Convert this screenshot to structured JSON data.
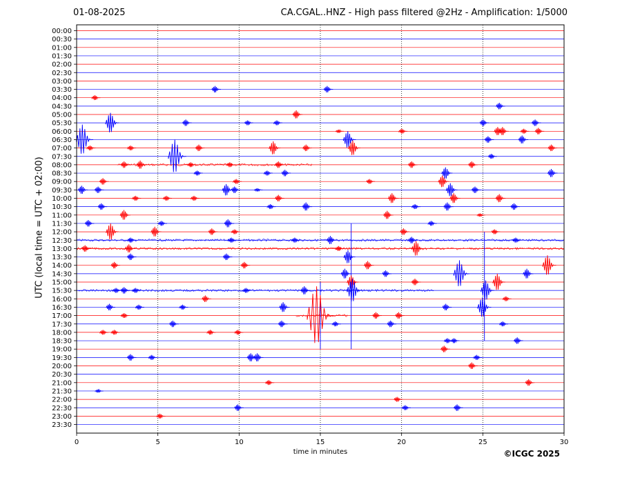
{
  "header": {
    "date": "01-08-2025",
    "title": "CA.CGAL..HNZ - High pass filtered @2Hz - Amplification: 1/5000"
  },
  "credit": "©ICGC 2025",
  "colors": {
    "trace_a": "#ff0000",
    "trace_b": "#0000ff",
    "grid": "#000000"
  },
  "chart_data": {
    "type": "line",
    "title": "CA.CGAL..HNZ - High pass filtered @2Hz - Amplification: 1/5000",
    "xlabel": "time in minutes",
    "ylabel": "UTC (local time = UTC + 02:00)",
    "xlim": [
      0,
      30
    ],
    "x_ticks": [
      "0",
      "5",
      "10",
      "15",
      "20",
      "25",
      "30"
    ],
    "x_tick_values": [
      0,
      5,
      10,
      15,
      20,
      25,
      30
    ],
    "vertical_grid_minutes": [
      5,
      10,
      15,
      20,
      25
    ],
    "y_tick_labels": [
      "00:00",
      "00:30",
      "01:00",
      "01:30",
      "02:00",
      "02:30",
      "03:00",
      "03:30",
      "04:00",
      "04:30",
      "05:00",
      "05:30",
      "06:00",
      "06:30",
      "07:00",
      "07:30",
      "08:00",
      "08:30",
      "09:00",
      "09:30",
      "10:00",
      "10:30",
      "11:00",
      "11:30",
      "12:00",
      "12:30",
      "13:00",
      "13:30",
      "14:00",
      "14:30",
      "15:00",
      "15:30",
      "16:00",
      "16:30",
      "17:00",
      "17:30",
      "18:00",
      "18:30",
      "19:00",
      "19:30",
      "20:00",
      "20:30",
      "21:00",
      "21:30",
      "22:00",
      "22:30",
      "23:00",
      "23:30"
    ],
    "trace_color_order": [
      "red",
      "blue"
    ],
    "events": [
      {
        "row": "03:30",
        "minute": 8.6,
        "amp": 0.4
      },
      {
        "row": "03:30",
        "minute": 15.5,
        "amp": 0.4
      },
      {
        "row": "04:00",
        "minute": 1.2,
        "amp": 0.3
      },
      {
        "row": "04:30",
        "minute": 26.1,
        "amp": 0.4
      },
      {
        "row": "05:00",
        "minute": 13.6,
        "amp": 0.5
      },
      {
        "row": "05:30",
        "minute": 2.2,
        "amp": 1.2
      },
      {
        "row": "05:30",
        "minute": 6.8,
        "amp": 0.4
      },
      {
        "row": "05:30",
        "minute": 10.6,
        "amp": 0.3
      },
      {
        "row": "05:30",
        "minute": 12.4,
        "amp": 0.3
      },
      {
        "row": "05:30",
        "minute": 25.1,
        "amp": 0.4
      },
      {
        "row": "05:30",
        "minute": 28.3,
        "amp": 0.4
      },
      {
        "row": "06:00",
        "minute": 16.2,
        "amp": 0.2
      },
      {
        "row": "06:00",
        "minute": 20.1,
        "amp": 0.3
      },
      {
        "row": "06:00",
        "minute": 26.0,
        "amp": 0.5
      },
      {
        "row": "06:00",
        "minute": 26.3,
        "amp": 0.5
      },
      {
        "row": "06:00",
        "minute": 27.6,
        "amp": 0.3
      },
      {
        "row": "06:00",
        "minute": 28.5,
        "amp": 0.4
      },
      {
        "row": "06:30",
        "minute": 0.5,
        "amp": 1.8
      },
      {
        "row": "06:30",
        "minute": 16.8,
        "amp": 1.0
      },
      {
        "row": "06:30",
        "minute": 25.4,
        "amp": 0.4
      },
      {
        "row": "06:30",
        "minute": 27.5,
        "amp": 0.5
      },
      {
        "row": "07:00",
        "minute": 0.9,
        "amp": 0.3
      },
      {
        "row": "07:00",
        "minute": 3.4,
        "amp": 0.3
      },
      {
        "row": "07:00",
        "minute": 7.6,
        "amp": 0.4
      },
      {
        "row": "07:00",
        "minute": 12.2,
        "amp": 0.8
      },
      {
        "row": "07:00",
        "minute": 14.2,
        "amp": 0.4
      },
      {
        "row": "07:00",
        "minute": 17.1,
        "amp": 0.9
      },
      {
        "row": "07:00",
        "minute": 29.3,
        "amp": 0.4
      },
      {
        "row": "07:30",
        "minute": 6.2,
        "amp": 2.0
      },
      {
        "row": "07:30",
        "minute": 25.6,
        "amp": 0.3
      },
      {
        "row": "08:00",
        "minute": 3.0,
        "amp": 0.4
      },
      {
        "row": "08:00",
        "minute": 4.0,
        "amp": 0.5
      },
      {
        "row": "08:00",
        "minute": 7.1,
        "amp": 0.3
      },
      {
        "row": "08:00",
        "minute": 9.5,
        "amp": 0.3
      },
      {
        "row": "08:00",
        "minute": 12.5,
        "amp": 0.4
      },
      {
        "row": "08:00",
        "minute": 20.7,
        "amp": 0.4
      },
      {
        "row": "08:00",
        "minute": 24.4,
        "amp": 0.4
      },
      {
        "row": "08:30",
        "minute": 7.5,
        "amp": 0.3
      },
      {
        "row": "08:30",
        "minute": 11.8,
        "amp": 0.3
      },
      {
        "row": "08:30",
        "minute": 12.9,
        "amp": 0.4
      },
      {
        "row": "08:30",
        "minute": 22.8,
        "amp": 0.7
      },
      {
        "row": "08:30",
        "minute": 29.3,
        "amp": 0.5
      },
      {
        "row": "09:00",
        "minute": 1.7,
        "amp": 0.4
      },
      {
        "row": "09:00",
        "minute": 9.9,
        "amp": 0.3
      },
      {
        "row": "09:00",
        "minute": 18.1,
        "amp": 0.3
      },
      {
        "row": "09:00",
        "minute": 22.6,
        "amp": 0.7
      },
      {
        "row": "09:30",
        "minute": 0.4,
        "amp": 0.5
      },
      {
        "row": "09:30",
        "minute": 1.4,
        "amp": 0.4
      },
      {
        "row": "09:30",
        "minute": 9.3,
        "amp": 0.7
      },
      {
        "row": "09:30",
        "minute": 9.8,
        "amp": 0.4
      },
      {
        "row": "09:30",
        "minute": 11.2,
        "amp": 0.2
      },
      {
        "row": "09:30",
        "minute": 23.1,
        "amp": 0.8
      },
      {
        "row": "09:30",
        "minute": 24.6,
        "amp": 0.4
      },
      {
        "row": "10:00",
        "minute": 3.7,
        "amp": 0.3
      },
      {
        "row": "10:00",
        "minute": 5.6,
        "amp": 0.3
      },
      {
        "row": "10:00",
        "minute": 7.3,
        "amp": 0.3
      },
      {
        "row": "10:00",
        "minute": 12.5,
        "amp": 0.4
      },
      {
        "row": "10:00",
        "minute": 19.5,
        "amp": 0.6
      },
      {
        "row": "10:00",
        "minute": 23.3,
        "amp": 0.6
      },
      {
        "row": "10:00",
        "minute": 26.1,
        "amp": 0.5
      },
      {
        "row": "10:30",
        "minute": 1.6,
        "amp": 0.4
      },
      {
        "row": "10:30",
        "minute": 12.0,
        "amp": 0.3
      },
      {
        "row": "10:30",
        "minute": 14.2,
        "amp": 0.5
      },
      {
        "row": "10:30",
        "minute": 20.9,
        "amp": 0.3
      },
      {
        "row": "10:30",
        "minute": 22.9,
        "amp": 0.5
      },
      {
        "row": "10:30",
        "minute": 27.0,
        "amp": 0.4
      },
      {
        "row": "11:00",
        "minute": 3.0,
        "amp": 0.6
      },
      {
        "row": "11:00",
        "minute": 19.2,
        "amp": 0.5
      },
      {
        "row": "11:00",
        "minute": 24.9,
        "amp": 0.2
      },
      {
        "row": "11:30",
        "minute": 0.8,
        "amp": 0.4
      },
      {
        "row": "11:30",
        "minute": 5.3,
        "amp": 0.3
      },
      {
        "row": "11:30",
        "minute": 9.4,
        "amp": 0.5
      },
      {
        "row": "11:30",
        "minute": 21.9,
        "amp": 0.3
      },
      {
        "row": "12:00",
        "minute": 2.2,
        "amp": 1.0
      },
      {
        "row": "12:00",
        "minute": 4.9,
        "amp": 0.6
      },
      {
        "row": "12:00",
        "minute": 8.4,
        "amp": 0.4
      },
      {
        "row": "12:00",
        "minute": 9.8,
        "amp": 0.3
      },
      {
        "row": "12:00",
        "minute": 20.2,
        "amp": 0.4
      },
      {
        "row": "12:00",
        "minute": 25.8,
        "amp": 0.3
      },
      {
        "row": "12:30",
        "minute": 3.4,
        "amp": 0.3
      },
      {
        "row": "12:30",
        "minute": 9.6,
        "amp": 0.3
      },
      {
        "row": "12:30",
        "minute": 13.5,
        "amp": 0.3
      },
      {
        "row": "12:30",
        "minute": 15.7,
        "amp": 0.5
      },
      {
        "row": "12:30",
        "minute": 20.7,
        "amp": 0.4
      },
      {
        "row": "12:30",
        "minute": 27.1,
        "amp": 0.3
      },
      {
        "row": "13:00",
        "minute": 0.6,
        "amp": 0.4
      },
      {
        "row": "13:00",
        "minute": 3.3,
        "amp": 0.5
      },
      {
        "row": "13:00",
        "minute": 16.2,
        "amp": 0.3
      },
      {
        "row": "13:00",
        "minute": 21.0,
        "amp": 0.9
      },
      {
        "row": "13:30",
        "minute": 3.4,
        "amp": 0.4
      },
      {
        "row": "13:30",
        "minute": 9.3,
        "amp": 0.4
      },
      {
        "row": "13:30",
        "minute": 16.8,
        "amp": 0.8
      },
      {
        "row": "14:00",
        "minute": 2.4,
        "amp": 0.4
      },
      {
        "row": "14:00",
        "minute": 10.4,
        "amp": 0.4
      },
      {
        "row": "14:00",
        "minute": 18.0,
        "amp": 0.5
      },
      {
        "row": "14:00",
        "minute": 29.1,
        "amp": 1.2
      },
      {
        "row": "14:30",
        "minute": 16.6,
        "amp": 0.6
      },
      {
        "row": "14:30",
        "minute": 19.1,
        "amp": 0.4
      },
      {
        "row": "14:30",
        "minute": 23.7,
        "amp": 1.6
      },
      {
        "row": "14:30",
        "minute": 27.8,
        "amp": 0.6
      },
      {
        "row": "15:00",
        "minute": 17.0,
        "amp": 0.8
      },
      {
        "row": "15:00",
        "minute": 20.9,
        "amp": 0.4
      },
      {
        "row": "15:00",
        "minute": 26.0,
        "amp": 1.0
      },
      {
        "row": "15:30",
        "minute": 2.5,
        "amp": 0.3
      },
      {
        "row": "15:30",
        "minute": 3.0,
        "amp": 0.4
      },
      {
        "row": "15:30",
        "minute": 3.7,
        "amp": 0.3
      },
      {
        "row": "15:30",
        "minute": 10.5,
        "amp": 0.3
      },
      {
        "row": "15:30",
        "minute": 14.1,
        "amp": 0.5
      },
      {
        "row": "15:30",
        "minute": 17.1,
        "amp": 1.4
      },
      {
        "row": "15:30",
        "minute": 25.3,
        "amp": 1.2
      },
      {
        "row": "16:00",
        "minute": 8.0,
        "amp": 0.4
      },
      {
        "row": "16:00",
        "minute": 26.5,
        "amp": 0.3
      },
      {
        "row": "16:30",
        "minute": 2.1,
        "amp": 0.4
      },
      {
        "row": "16:30",
        "minute": 3.9,
        "amp": 0.3
      },
      {
        "row": "16:30",
        "minute": 6.6,
        "amp": 0.3
      },
      {
        "row": "16:30",
        "minute": 12.8,
        "amp": 0.6
      },
      {
        "row": "16:30",
        "minute": 22.8,
        "amp": 0.4
      },
      {
        "row": "16:30",
        "minute": 25.1,
        "amp": 1.2
      },
      {
        "row": "17:00",
        "minute": 3.0,
        "amp": 0.3
      },
      {
        "row": "17:00",
        "minute": 15.0,
        "amp": 3.5
      },
      {
        "row": "17:00",
        "minute": 18.5,
        "amp": 0.4
      },
      {
        "row": "17:00",
        "minute": 19.9,
        "amp": 0.4
      },
      {
        "row": "17:30",
        "minute": 6.0,
        "amp": 0.4
      },
      {
        "row": "17:30",
        "minute": 12.7,
        "amp": 0.4
      },
      {
        "row": "17:30",
        "minute": 16.0,
        "amp": 0.3
      },
      {
        "row": "17:30",
        "minute": 19.4,
        "amp": 0.4
      },
      {
        "row": "17:30",
        "minute": 26.3,
        "amp": 0.3
      },
      {
        "row": "18:00",
        "minute": 1.7,
        "amp": 0.3
      },
      {
        "row": "18:00",
        "minute": 2.4,
        "amp": 0.3
      },
      {
        "row": "18:00",
        "minute": 8.3,
        "amp": 0.3
      },
      {
        "row": "18:00",
        "minute": 10.0,
        "amp": 0.3
      },
      {
        "row": "18:30",
        "minute": 22.9,
        "amp": 0.3
      },
      {
        "row": "18:30",
        "minute": 23.3,
        "amp": 0.3
      },
      {
        "row": "18:30",
        "minute": 27.2,
        "amp": 0.4
      },
      {
        "row": "19:00",
        "minute": 22.7,
        "amp": 0.4
      },
      {
        "row": "19:30",
        "minute": 3.4,
        "amp": 0.4
      },
      {
        "row": "19:30",
        "minute": 4.7,
        "amp": 0.3
      },
      {
        "row": "19:30",
        "minute": 10.8,
        "amp": 0.5
      },
      {
        "row": "19:30",
        "minute": 11.2,
        "amp": 0.5
      },
      {
        "row": "19:30",
        "minute": 24.7,
        "amp": 0.3
      },
      {
        "row": "20:00",
        "minute": 24.4,
        "amp": 0.4
      },
      {
        "row": "21:00",
        "minute": 11.9,
        "amp": 0.3
      },
      {
        "row": "21:00",
        "minute": 27.9,
        "amp": 0.4
      },
      {
        "row": "21:30",
        "minute": 1.4,
        "amp": 0.2
      },
      {
        "row": "22:00",
        "minute": 19.8,
        "amp": 0.3
      },
      {
        "row": "22:30",
        "minute": 10.0,
        "amp": 0.4
      },
      {
        "row": "22:30",
        "minute": 20.3,
        "amp": 0.3
      },
      {
        "row": "22:30",
        "minute": 23.5,
        "amp": 0.4
      },
      {
        "row": "23:00",
        "minute": 5.2,
        "amp": 0.3
      }
    ],
    "long_vertical_spikes": [
      {
        "from_row": "11:30",
        "to_row": "19:00",
        "minute": 16.9
      },
      {
        "from_row": "12:00",
        "to_row": "18:30",
        "minute": 25.1
      },
      {
        "from_row": "15:00",
        "to_row": "19:00",
        "minute": 15.0
      }
    ],
    "noisy_bands": [
      {
        "row": "08:00",
        "from_minute": 2.5,
        "to_minute": 14.5
      },
      {
        "row": "12:30",
        "from_minute": 0.0,
        "to_minute": 30.0
      },
      {
        "row": "13:00",
        "from_minute": 0.0,
        "to_minute": 30.0
      },
      {
        "row": "15:30",
        "from_minute": 0.0,
        "to_minute": 22.0
      },
      {
        "row": "17:00",
        "from_minute": 13.5,
        "to_minute": 16.7
      }
    ]
  }
}
